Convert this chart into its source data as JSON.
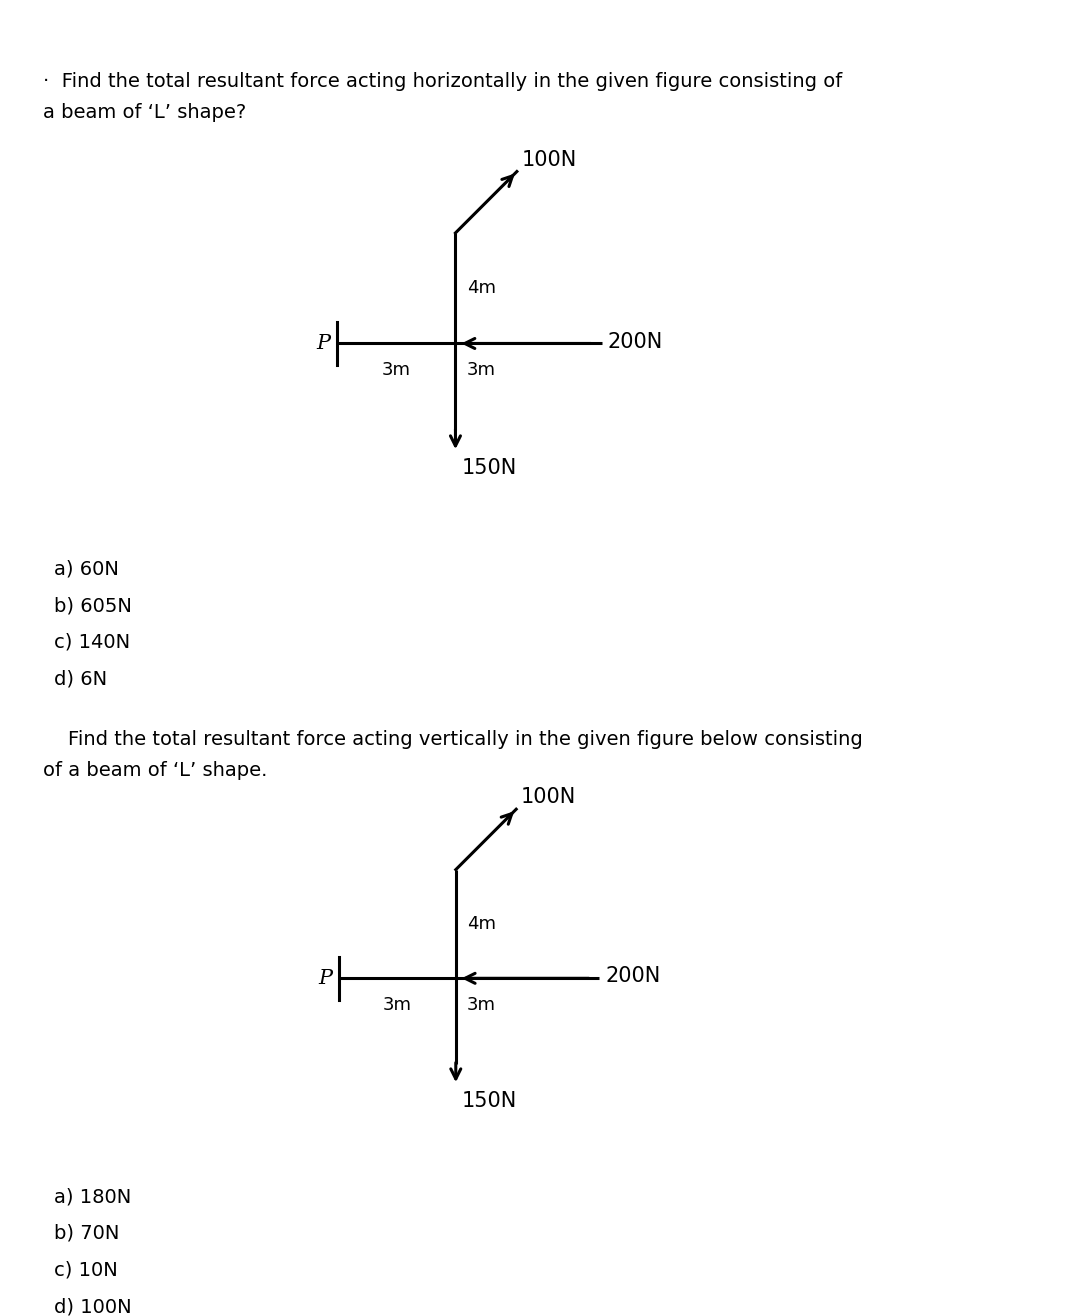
{
  "bg_color": "#ffffff",
  "fig_width": 10.8,
  "fig_height": 13.16,
  "q1_title_line1": "·  Find the total resultant force acting horizontally in the given figure consisting of",
  "q1_title_line2": "a beam of ‘L’ shape?",
  "q1_options": [
    "a) 60N",
    "b) 605N",
    "c) 140N",
    "d) 6N"
  ],
  "q2_title_line1": "    Find the total resultant force acting vertically in the given figure below consisting",
  "q2_title_line2": "of a beam of ‘L’ shape.",
  "q2_options": [
    "a) 180N",
    "b) 70N",
    "c) 10N",
    "d) 100N"
  ],
  "label_100N": "100N",
  "label_200N": "200N",
  "label_150N": "150N",
  "label_4m": "4m",
  "label_3m_left": "3m",
  "label_3m_right": "3m",
  "label_P": "P",
  "title_fontsize": 14,
  "option_fontsize": 14,
  "diagram_fontsize": 15
}
